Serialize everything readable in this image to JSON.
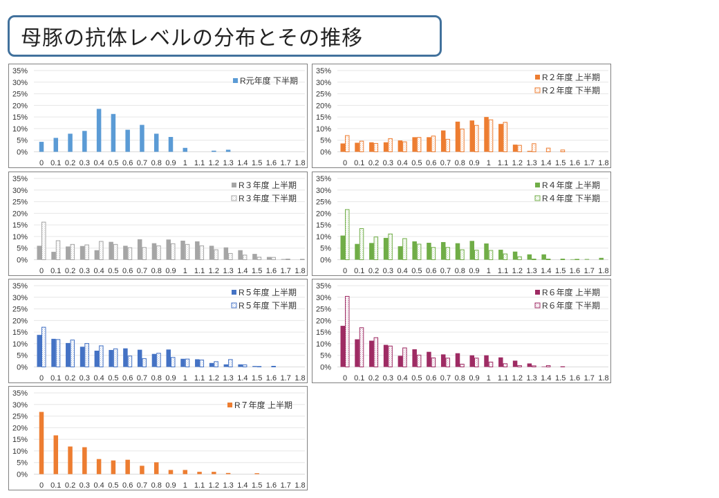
{
  "title": "母豚の抗体レベルの分布とその推移",
  "chart_data": [
    {
      "type": "bar",
      "categories": [
        "0",
        "0.1",
        "0.2",
        "0.3",
        "0.4",
        "0.5",
        "0.6",
        "0.7",
        "0.8",
        "0.9",
        "1",
        "1.1",
        "1.2",
        "1.3",
        "1.4",
        "1.5",
        "1.6",
        "1.7",
        "1.8"
      ],
      "yticks": [
        "0%",
        "5%",
        "10%",
        "15%",
        "20%",
        "25%",
        "30%",
        "35%"
      ],
      "ylim": [
        0,
        35
      ],
      "grid": true,
      "legend": "top-right",
      "series": [
        {
          "name": "R元年度 下半期",
          "color": "#5b9bd5",
          "style": "solid",
          "values": [
            4.3,
            6,
            7.8,
            9,
            18.5,
            16.3,
            9.5,
            11.6,
            7.8,
            6.4,
            1.7,
            0,
            0.5,
            0.9,
            0,
            0,
            0,
            0,
            0
          ]
        }
      ]
    },
    {
      "type": "bar",
      "categories": [
        "0",
        "0.1",
        "0.2",
        "0.3",
        "0.4",
        "0.5",
        "0.6",
        "0.7",
        "0.8",
        "0.9",
        "1",
        "1.1",
        "1.2",
        "1.3",
        "1.4",
        "1.5",
        "1.6",
        "1.7",
        "1.8"
      ],
      "yticks": [
        "0%",
        "5%",
        "10%",
        "15%",
        "20%",
        "25%",
        "30%",
        "35%"
      ],
      "ylim": [
        0,
        35
      ],
      "grid": true,
      "legend": "top-right",
      "series": [
        {
          "name": "R２年度 上半期",
          "color": "#ed7d31",
          "style": "solid",
          "values": [
            3.6,
            3.9,
            4.1,
            4.1,
            4.9,
            6.3,
            6.3,
            9.2,
            13,
            13.5,
            15,
            12,
            3.1,
            0.4,
            0,
            0,
            0,
            0,
            0
          ]
        },
        {
          "name": "R２年度 下半期",
          "color": "#ed7d31",
          "style": "hatched",
          "values": [
            7,
            4.6,
            3.6,
            5.7,
            4.3,
            6.2,
            6.8,
            5.4,
            9.8,
            11.4,
            13.8,
            12.7,
            2.8,
            3.5,
            1.6,
            0.8,
            0,
            0,
            0
          ]
        }
      ]
    },
    {
      "type": "bar",
      "categories": [
        "0",
        "0.1",
        "0.2",
        "0.3",
        "0.4",
        "0.5",
        "0.6",
        "0.7",
        "0.8",
        "0.9",
        "1",
        "1.1",
        "1.2",
        "1.3",
        "1.4",
        "1.5",
        "1.6",
        "1.7",
        "1.8"
      ],
      "yticks": [
        "0%",
        "5%",
        "10%",
        "15%",
        "20%",
        "25%",
        "30%",
        "35%"
      ],
      "ylim": [
        0,
        35
      ],
      "grid": true,
      "legend": "top-right",
      "series": [
        {
          "name": "R３年度 上半期",
          "color": "#a5a5a5",
          "style": "solid",
          "values": [
            6,
            3.4,
            5.7,
            5.9,
            4.1,
            7.7,
            6,
            8.8,
            7.1,
            8.7,
            8.2,
            7.9,
            6,
            5.3,
            4.1,
            2.5,
            1.2,
            0.3,
            0
          ]
        },
        {
          "name": "R３年度 下半期",
          "color": "#a5a5a5",
          "style": "hatched",
          "values": [
            16.2,
            8.2,
            6.6,
            6.4,
            7.9,
            6.6,
            5.2,
            5.3,
            6,
            6.9,
            6.6,
            6,
            4.3,
            2.7,
            2,
            1.1,
            1,
            0.3,
            0.2
          ]
        }
      ]
    },
    {
      "type": "bar",
      "categories": [
        "0",
        "0.1",
        "0.2",
        "0.3",
        "0.4",
        "0.5",
        "0.6",
        "0.7",
        "0.8",
        "0.9",
        "1",
        "1.1",
        "1.2",
        "1.3",
        "1.4",
        "1.5",
        "1.6",
        "1.7",
        "1.8"
      ],
      "yticks": [
        "0%",
        "5%",
        "10%",
        "15%",
        "20%",
        "25%",
        "30%",
        "35%"
      ],
      "ylim": [
        0,
        35
      ],
      "grid": true,
      "legend": "top-right",
      "series": [
        {
          "name": "R４年度 上半期",
          "color": "#70ad47",
          "style": "solid",
          "values": [
            10.4,
            6.8,
            7.2,
            9.4,
            5.8,
            7.9,
            7.3,
            7.6,
            7.1,
            8.1,
            7,
            4.3,
            3.5,
            2.3,
            2.3,
            0,
            0.2,
            0.3,
            0.8
          ]
        },
        {
          "name": "R４年度 下半期",
          "color": "#70ad47",
          "style": "hatched",
          "values": [
            21.6,
            13.4,
            9.8,
            11.1,
            9.1,
            6.7,
            5.3,
            5.3,
            4.3,
            4.1,
            4,
            2.5,
            1.3,
            0.3,
            0.3,
            0.3,
            0.2,
            0,
            0
          ]
        }
      ]
    },
    {
      "type": "bar",
      "categories": [
        "0",
        "0.1",
        "0.2",
        "0.3",
        "0.4",
        "0.5",
        "0.6",
        "0.7",
        "0.8",
        "0.9",
        "1",
        "1.1",
        "1.2",
        "1.3",
        "1.4",
        "1.5",
        "1.6",
        "1.7",
        "1.8"
      ],
      "yticks": [
        "0%",
        "5%",
        "10%",
        "15%",
        "20%",
        "25%",
        "30%",
        "35%"
      ],
      "ylim": [
        0,
        35
      ],
      "grid": true,
      "legend": "top-right",
      "series": [
        {
          "name": "R５年度 上半期",
          "color": "#4472c4",
          "style": "solid",
          "values": [
            13.8,
            12.1,
            10.3,
            8.7,
            7,
            7.3,
            8,
            7.4,
            5.6,
            7.5,
            3.5,
            3.3,
            1.7,
            1.1,
            1.1,
            0.4,
            0,
            0,
            0
          ]
        },
        {
          "name": "R５年度 下半期",
          "color": "#4472c4",
          "style": "hatched",
          "values": [
            17.1,
            11.8,
            11.6,
            10.1,
            9.1,
            7.8,
            4.7,
            3.6,
            5.9,
            4.1,
            3.4,
            3,
            2.3,
            3.2,
            0.9,
            0.2,
            0.3,
            0,
            0
          ]
        }
      ]
    },
    {
      "type": "bar",
      "categories": [
        "0",
        "0.1",
        "0.2",
        "0.3",
        "0.4",
        "0.5",
        "0.6",
        "0.7",
        "0.8",
        "0.9",
        "1",
        "1.1",
        "1.2",
        "1.3",
        "1.4",
        "1.5",
        "1.6",
        "1.7",
        "1.8"
      ],
      "yticks": [
        "0%",
        "5%",
        "10%",
        "15%",
        "20%",
        "25%",
        "30%",
        "35%"
      ],
      "ylim": [
        0,
        35
      ],
      "grid": true,
      "legend": "top-right",
      "series": [
        {
          "name": "R６年度 上半期",
          "color": "#9e2b63",
          "style": "solid",
          "values": [
            17.7,
            11.9,
            11.3,
            9.5,
            4.8,
            7.6,
            6.5,
            5.4,
            5.9,
            5,
            5,
            4.1,
            2.7,
            1.5,
            0.2,
            0,
            0,
            0,
            0
          ]
        },
        {
          "name": "R６年度 下半期",
          "color": "#9e2b63",
          "style": "hatched",
          "values": [
            30.4,
            16.9,
            12.6,
            9,
            8.2,
            5.1,
            3.9,
            3.8,
            1.2,
            3.8,
            2.1,
            1.4,
            0.6,
            0.5,
            0.6,
            0.1,
            0,
            0,
            0
          ]
        }
      ]
    },
    {
      "type": "bar",
      "categories": [
        "0",
        "0.1",
        "0.2",
        "0.3",
        "0.4",
        "0.5",
        "0.6",
        "0.7",
        "0.8",
        "0.9",
        "1",
        "1.1",
        "1.2",
        "1.3",
        "1.4",
        "1.5",
        "1.6",
        "1.7",
        "1.8"
      ],
      "yticks": [
        "0%",
        "5%",
        "10%",
        "15%",
        "20%",
        "25%",
        "30%",
        "35%"
      ],
      "ylim": [
        0,
        35
      ],
      "grid": true,
      "legend": "top-right",
      "series": [
        {
          "name": "R７年度 上半期",
          "color": "#ed7d31",
          "style": "solid",
          "values": [
            26.8,
            16.7,
            11.9,
            11.6,
            6.5,
            5.9,
            6.2,
            3.6,
            5.1,
            1.8,
            1.8,
            1,
            1,
            0.5,
            0,
            0.4,
            0,
            0,
            0
          ]
        }
      ]
    }
  ]
}
